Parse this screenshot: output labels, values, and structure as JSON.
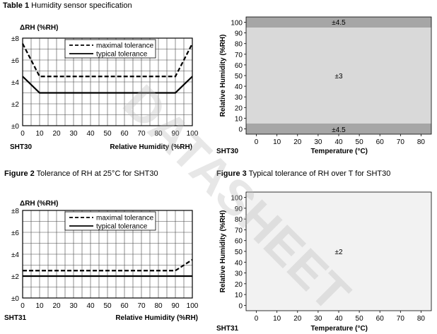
{
  "captions": {
    "table": {
      "prefix": "Table 1",
      "text": " Humidity sensor specification"
    },
    "figure2": {
      "prefix": "Figure 2",
      "text": " Tolerance of RH at 25°C for SHT30"
    },
    "figure3": {
      "prefix": "Figure 3",
      "text": " Typical tolerance of RH over T for SHT30"
    }
  },
  "watermark": {
    "text": "DATASHEET",
    "color": "#bbbbbb"
  },
  "chart_data": [
    {
      "id": "sht30-rh",
      "type": "line",
      "sensor": "SHT30",
      "ylabel": "ΔRH (%RH)",
      "xlabel": "Relative Humidity (%RH)",
      "xlim": [
        0,
        100
      ],
      "ylim": [
        0,
        8
      ],
      "xticks": [
        0,
        10,
        20,
        30,
        40,
        50,
        60,
        70,
        80,
        90,
        100
      ],
      "yticks": [
        0,
        2,
        4,
        6,
        8
      ],
      "ytick_labels": [
        "±0",
        "±2",
        "±4",
        "±6",
        "±8"
      ],
      "grid": true,
      "legend": "top-center",
      "series": [
        {
          "name": "maximal tolerance",
          "style": "dashed",
          "x": [
            0,
            10,
            90,
            100
          ],
          "y": [
            7.5,
            4.5,
            4.5,
            7.5
          ]
        },
        {
          "name": "typical tolerance",
          "style": "solid",
          "x": [
            0,
            10,
            90,
            100
          ],
          "y": [
            4.5,
            3,
            3,
            4.5
          ]
        }
      ]
    },
    {
      "id": "sht30-temp",
      "type": "heatmap",
      "sensor": "SHT30",
      "ylabel": "Relative Humidity (%RH)",
      "xlabel": "Temperature (°C)",
      "xlim": [
        -5,
        85
      ],
      "ylim": [
        -5,
        105
      ],
      "xticks": [
        0,
        10,
        20,
        30,
        40,
        50,
        60,
        70,
        80
      ],
      "yticks": [
        0,
        10,
        20,
        30,
        40,
        50,
        60,
        70,
        80,
        90,
        100
      ],
      "regions": [
        {
          "label": "±4.5",
          "y_range": [
            95,
            105
          ],
          "color": "#a6a6a6",
          "label_at": [
            40,
            100.5
          ]
        },
        {
          "label": "±3",
          "y_range": [
            5,
            95
          ],
          "color": "#d9d9d9",
          "label_at": [
            40,
            50
          ]
        },
        {
          "label": "±4.5",
          "y_range": [
            -5,
            5
          ],
          "color": "#a6a6a6",
          "label_at": [
            40,
            -0.5
          ]
        }
      ]
    },
    {
      "id": "sht31-rh",
      "type": "line",
      "sensor": "SHT31",
      "ylabel": "ΔRH (%RH)",
      "xlabel": "Relative Humidity (%RH)",
      "xlim": [
        0,
        100
      ],
      "ylim": [
        0,
        8
      ],
      "xticks": [
        0,
        10,
        20,
        30,
        40,
        50,
        60,
        70,
        80,
        90,
        100
      ],
      "yticks": [
        0,
        2,
        4,
        6,
        8
      ],
      "ytick_labels": [
        "±0",
        "±2",
        "±4",
        "±6",
        "±8"
      ],
      "grid": true,
      "legend": "top-center",
      "series": [
        {
          "name": "maximal tolerance",
          "style": "dashed",
          "x": [
            0,
            90,
            100
          ],
          "y": [
            2.5,
            2.5,
            3.5
          ]
        },
        {
          "name": "typical tolerance",
          "style": "solid",
          "x": [
            0,
            100
          ],
          "y": [
            2,
            2
          ]
        }
      ]
    },
    {
      "id": "sht31-temp",
      "type": "heatmap",
      "sensor": "SHT31",
      "ylabel": "Relative Humidity (%RH)",
      "xlabel": "Temperature (°C)",
      "xlim": [
        -5,
        85
      ],
      "ylim": [
        -5,
        105
      ],
      "xticks": [
        0,
        10,
        20,
        30,
        40,
        50,
        60,
        70,
        80
      ],
      "yticks": [
        0,
        10,
        20,
        30,
        40,
        50,
        60,
        70,
        80,
        90,
        100
      ],
      "regions": [
        {
          "label": "±2",
          "y_range": [
            -5,
            105
          ],
          "color": "#f2f2f2",
          "label_at": [
            40,
            50
          ]
        }
      ]
    }
  ]
}
